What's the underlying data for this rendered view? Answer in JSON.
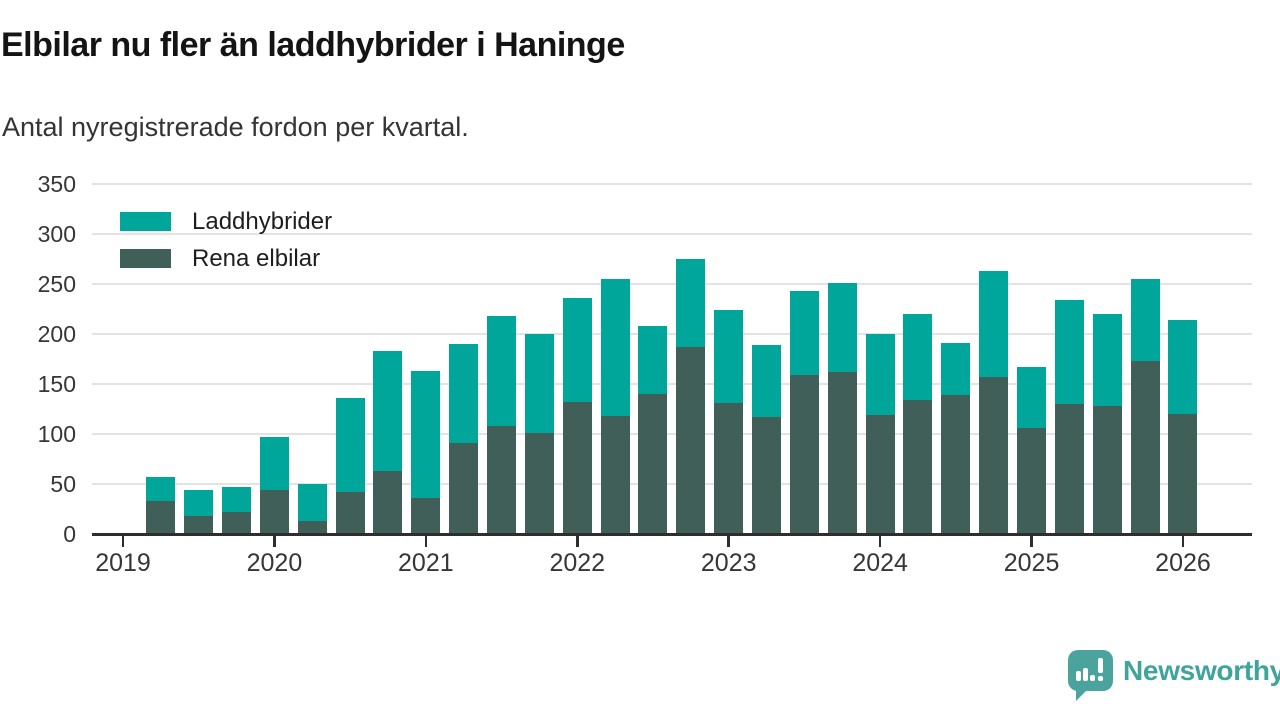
{
  "title": "Elbilar nu fler än laddhybrider i Haninge",
  "subtitle": "Antal nyregistrerade fordon per kvartal.",
  "legend": {
    "items": [
      {
        "label": "Laddhybrider",
        "color": "#00a69a"
      },
      {
        "label": "Rena elbilar",
        "color": "#3f5f58"
      }
    ]
  },
  "footer": {
    "brand": "Newsworthy",
    "logo_icon": "bar-chart-speech-bubble-icon",
    "brand_color": "#3ea49c",
    "logo_color": "#4aa49d"
  },
  "colors": {
    "laddhybrider": "#00a69a",
    "rena_elbilar": "#3f5f58",
    "axis": "#2e2e2e",
    "gridline": "#e3e3e3",
    "title_text": "#141414",
    "tick_text": "#363636"
  },
  "chart_data": {
    "type": "bar",
    "stacked": true,
    "title": "Elbilar nu fler än laddhybrider i Haninge",
    "subtitle": "Antal nyregistrerade fordon per kvartal.",
    "xlabel": "",
    "ylabel": "",
    "ylim": [
      0,
      350
    ],
    "yticks": [
      0,
      50,
      100,
      150,
      200,
      250,
      300,
      350
    ],
    "xticks": [
      "2019",
      "2020",
      "2021",
      "2022",
      "2023",
      "2024",
      "2025",
      "2026"
    ],
    "grid": "horizontal",
    "legend_position": "top-left",
    "categories": [
      "2019 Q2",
      "2019 Q3",
      "2019 Q4",
      "2020 Q1",
      "2020 Q2",
      "2020 Q3",
      "2020 Q4",
      "2021 Q1",
      "2021 Q2",
      "2021 Q3",
      "2021 Q4",
      "2022 Q1",
      "2022 Q2",
      "2022 Q3",
      "2022 Q4",
      "2023 Q1",
      "2023 Q2",
      "2023 Q3",
      "2023 Q4",
      "2024 Q1",
      "2024 Q2",
      "2024 Q3",
      "2024 Q4",
      "2025 Q1",
      "2025 Q2",
      "2025 Q3",
      "2025 Q4",
      "2026 Q1"
    ],
    "series": [
      {
        "name": "Rena elbilar",
        "color": "#3f5f58",
        "values": [
          33,
          18,
          22,
          44,
          13,
          42,
          63,
          36,
          91,
          108,
          101,
          132,
          118,
          140,
          187,
          131,
          117,
          159,
          162,
          119,
          134,
          139,
          157,
          106,
          130,
          128,
          173,
          120
        ]
      },
      {
        "name": "Laddhybrider",
        "color": "#00a69a",
        "values": [
          24,
          26,
          25,
          53,
          37,
          94,
          120,
          127,
          99,
          110,
          99,
          104,
          137,
          68,
          88,
          93,
          72,
          84,
          89,
          81,
          86,
          52,
          106,
          61,
          104,
          92,
          82,
          94
        ]
      }
    ],
    "totals": [
      57,
      44,
      47,
      97,
      50,
      136,
      183,
      163,
      190,
      218,
      200,
      236,
      255,
      208,
      275,
      224,
      189,
      243,
      251,
      200,
      220,
      191,
      263,
      167,
      234,
      220,
      255,
      214
    ]
  }
}
